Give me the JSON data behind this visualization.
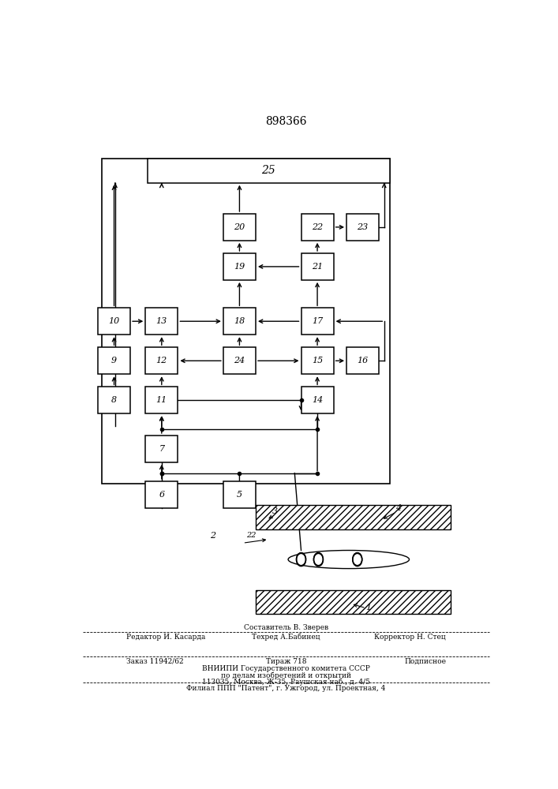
{
  "patent_number": "898366",
  "bg_color": "#ffffff",
  "box_color": "#ffffff",
  "box_edge": "#000000",
  "line_color": "#000000",
  "boxes": {
    "25": [
      0.18,
      0.855,
      0.56,
      0.04
    ],
    "20": [
      0.355,
      0.76,
      0.075,
      0.044
    ],
    "22": [
      0.535,
      0.76,
      0.075,
      0.044
    ],
    "23": [
      0.64,
      0.76,
      0.075,
      0.044
    ],
    "19": [
      0.355,
      0.695,
      0.075,
      0.044
    ],
    "21": [
      0.535,
      0.695,
      0.075,
      0.044
    ],
    "10": [
      0.065,
      0.605,
      0.075,
      0.044
    ],
    "13": [
      0.175,
      0.605,
      0.075,
      0.044
    ],
    "18": [
      0.355,
      0.605,
      0.075,
      0.044
    ],
    "17": [
      0.535,
      0.605,
      0.075,
      0.044
    ],
    "9": [
      0.065,
      0.54,
      0.075,
      0.044
    ],
    "12": [
      0.175,
      0.54,
      0.075,
      0.044
    ],
    "24": [
      0.355,
      0.54,
      0.075,
      0.044
    ],
    "15": [
      0.535,
      0.54,
      0.075,
      0.044
    ],
    "16": [
      0.64,
      0.54,
      0.075,
      0.044
    ],
    "8": [
      0.065,
      0.475,
      0.075,
      0.044
    ],
    "11": [
      0.175,
      0.475,
      0.075,
      0.044
    ],
    "14": [
      0.535,
      0.475,
      0.075,
      0.044
    ],
    "7": [
      0.175,
      0.395,
      0.075,
      0.044
    ],
    "6": [
      0.175,
      0.32,
      0.075,
      0.044
    ],
    "5": [
      0.355,
      0.32,
      0.075,
      0.044
    ]
  },
  "footer_line1": "Составитель В. Зверев",
  "footer_line2_left": "Редактор И. Касарда",
  "footer_line2_mid": "Техред А.Бабинец",
  "footer_line2_right": "Корректор Н. Стец",
  "footer_line3_left": "Заказ 11942/62",
  "footer_line3_mid": "Тираж 718",
  "footer_line3_right": "Подписное",
  "footer_line4": "ВНИИПИ Государственного комитета СССР",
  "footer_line5": "по делам изобретений и открытий",
  "footer_line6": "113035, Москва, Ж-35, Раушская наб., д. 4/5",
  "footer_line7": "Филиал ППП \"Патент\", г. Ужгород, ул. Проектная, 4"
}
